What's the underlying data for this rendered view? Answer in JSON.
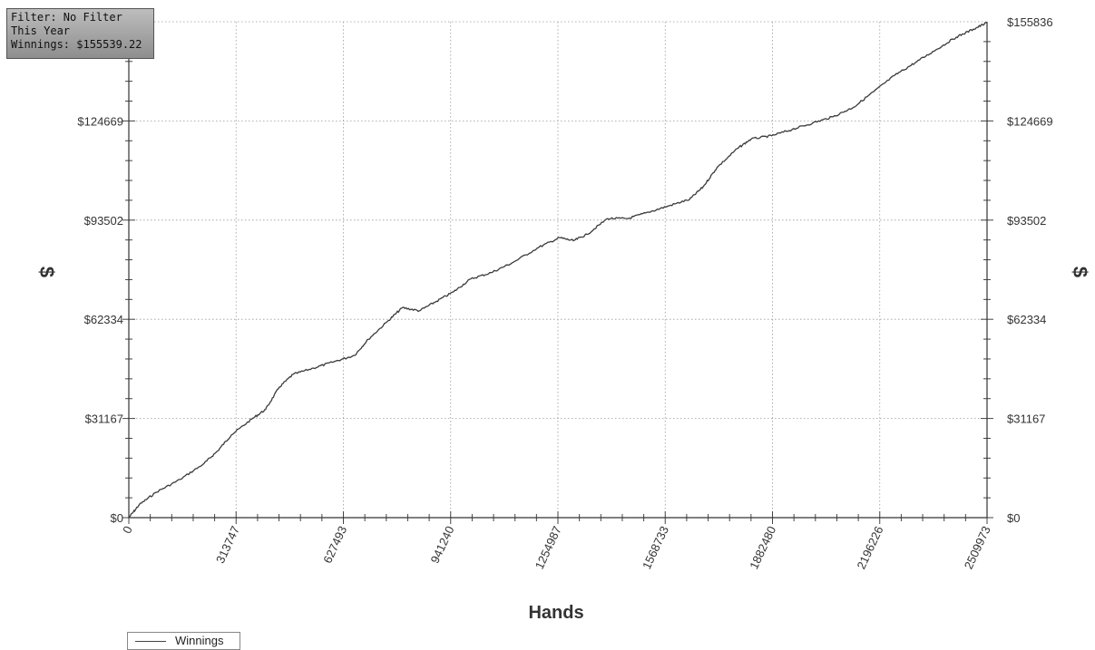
{
  "info": {
    "filter": "Filter: No Filter",
    "period": "This Year",
    "winnings": "Winnings: $155539.22"
  },
  "legend": {
    "series_name": "Winnings"
  },
  "chart_data": {
    "type": "line",
    "title": "",
    "xlabel": "Hands",
    "ylabel": "$",
    "y2label": "$",
    "xlim": [
      0,
      2509973
    ],
    "ylim": [
      0,
      155836
    ],
    "x_ticks": [
      0,
      313747,
      627493,
      941240,
      1254987,
      1568733,
      1882480,
      2196226,
      2509973
    ],
    "x_tick_labels": [
      "0",
      "313747",
      "627493",
      "941240",
      "1254987",
      "1568733",
      "1882480",
      "2196226",
      "2509973"
    ],
    "y_ticks": [
      0,
      31167,
      62334,
      93502,
      124669,
      155836
    ],
    "y_tick_labels": [
      "$0",
      "$31167",
      "$62334",
      "$93502",
      "$124669",
      "$155836"
    ],
    "grid": true,
    "legend_position": "bottom-left",
    "line_color": "#3a3a3a",
    "series": [
      {
        "name": "Winnings",
        "x": [
          0,
          30000,
          80000,
          150000,
          220000,
          260000,
          300000,
          360000,
          400000,
          440000,
          480000,
          540000,
          600000,
          660000,
          700000,
          760000,
          800000,
          850000,
          900000,
          950000,
          1000000,
          1060000,
          1120000,
          1200000,
          1260000,
          1300000,
          1340000,
          1400000,
          1460000,
          1520000,
          1580000,
          1640000,
          1680000,
          1720000,
          1780000,
          1820000,
          1880000,
          1940000,
          2000000,
          2060000,
          2120000,
          2180000,
          2240000,
          2300000,
          2360000,
          2420000,
          2470000,
          2509973
        ],
        "y": [
          0,
          4000,
          8000,
          12000,
          17000,
          21000,
          26000,
          31000,
          34000,
          41000,
          45000,
          47000,
          49000,
          51000,
          56000,
          62000,
          66000,
          65000,
          68000,
          71000,
          75000,
          77000,
          80000,
          85000,
          88000,
          87000,
          89000,
          94000,
          94000,
          96000,
          98000,
          100000,
          104000,
          110000,
          116000,
          119000,
          120000,
          122000,
          124000,
          126000,
          129000,
          134000,
          139000,
          143000,
          147000,
          151000,
          153500,
          155539
        ]
      }
    ]
  }
}
